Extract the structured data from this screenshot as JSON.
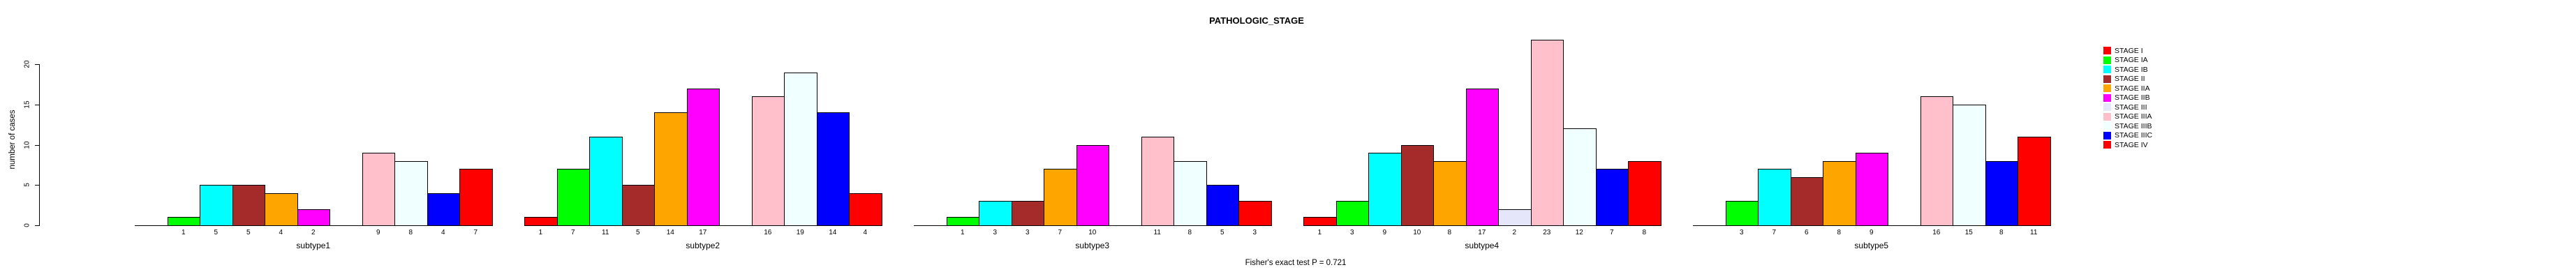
{
  "title": "PATHOLOGIC_STAGE",
  "footer": "Fisher's exact test P = 0.721",
  "chart_data": {
    "type": "bar",
    "title": "PATHOLOGIC_STAGE",
    "xlabel": "",
    "ylabel": "number of cases",
    "ylim": [
      0,
      20
    ],
    "yticks": [
      0,
      5,
      10,
      15,
      20
    ],
    "grid": false,
    "legend_position": "right",
    "annotation": "Fisher's exact test P = 0.721",
    "bar_labels": "each nonzero bar is labeled below with its count",
    "series": [
      {
        "name": "STAGE I",
        "color": "#FF0000",
        "values": [
          0,
          1,
          0,
          1,
          0
        ]
      },
      {
        "name": "STAGE IA",
        "color": "#00FF00",
        "values": [
          1,
          7,
          1,
          3,
          3
        ]
      },
      {
        "name": "STAGE IB",
        "color": "#00FFFF",
        "values": [
          5,
          11,
          3,
          9,
          7
        ]
      },
      {
        "name": "STAGE II",
        "color": "#A52A2A",
        "values": [
          5,
          5,
          3,
          10,
          6
        ]
      },
      {
        "name": "STAGE IIA",
        "color": "#FFA500",
        "values": [
          4,
          14,
          7,
          8,
          8
        ]
      },
      {
        "name": "STAGE IIB",
        "color": "#FF00FF",
        "values": [
          2,
          17,
          10,
          17,
          9
        ]
      },
      {
        "name": "STAGE III",
        "color": "#E6E6FA",
        "values": [
          0,
          0,
          0,
          2,
          0
        ]
      },
      {
        "name": "STAGE IIIA",
        "color": "#FFC0CB",
        "values": [
          9,
          16,
          11,
          23,
          16
        ]
      },
      {
        "name": "STAGE IIIB",
        "color": "#F0FFFF",
        "values": [
          8,
          19,
          8,
          12,
          15
        ]
      },
      {
        "name": "STAGE IIIC",
        "color": "#0000FF",
        "values": [
          4,
          14,
          5,
          7,
          8
        ]
      },
      {
        "name": "STAGE IV",
        "color": "#FF0000",
        "values": [
          7,
          4,
          3,
          8,
          11
        ]
      }
    ],
    "categories": [
      "subtype1",
      "subtype2",
      "subtype3",
      "subtype4",
      "subtype5"
    ]
  }
}
